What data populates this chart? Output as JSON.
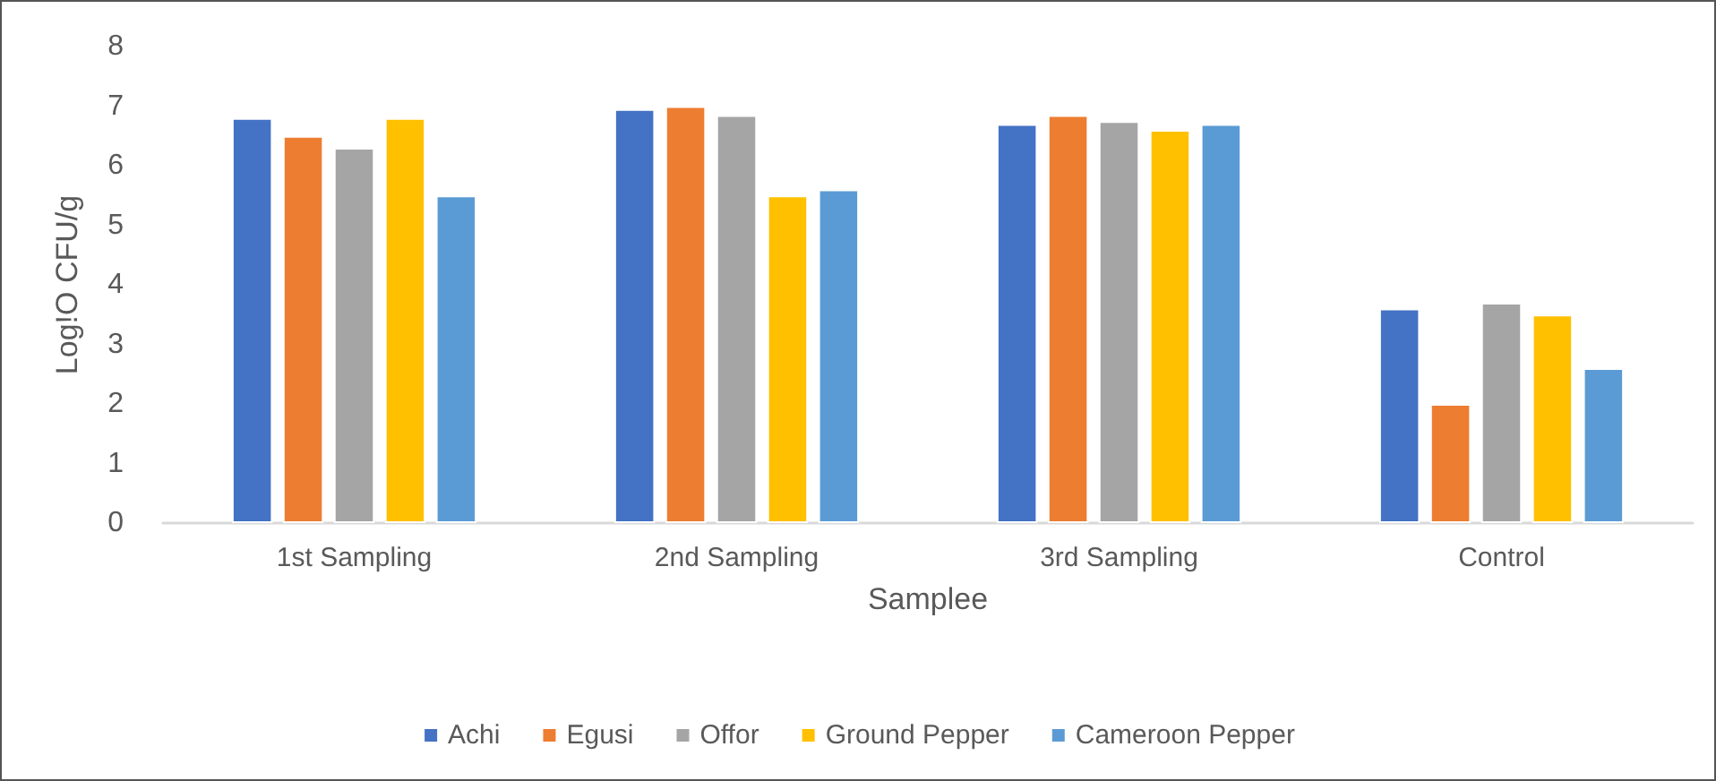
{
  "chart_data": {
    "type": "bar",
    "xlabel": "Samplee",
    "ylabel": "Log!O CFU/g",
    "categories": [
      "1st Sampling",
      "2nd Sampling",
      "3rd Sampling",
      "Control"
    ],
    "series": [
      {
        "name": "Achi",
        "color": "#4472c4",
        "values": [
          6.8,
          6.95,
          6.7,
          3.6
        ]
      },
      {
        "name": "Egusi",
        "color": "#ed7d31",
        "values": [
          6.5,
          7.0,
          6.85,
          2.0
        ]
      },
      {
        "name": "Offor",
        "color": "#a5a5a5",
        "values": [
          6.3,
          6.85,
          6.75,
          3.7
        ]
      },
      {
        "name": "Ground Pepper",
        "color": "#ffc000",
        "values": [
          6.8,
          5.5,
          6.6,
          3.5
        ]
      },
      {
        "name": "Cameroon Pepper",
        "color": "#5b9bd5",
        "values": [
          5.5,
          5.6,
          6.7,
          2.6
        ]
      }
    ],
    "ylim": [
      0,
      8
    ],
    "yticks": [
      0,
      1,
      2,
      3,
      4,
      5,
      6,
      7,
      8
    ],
    "grid": false,
    "legend": "bottom"
  }
}
